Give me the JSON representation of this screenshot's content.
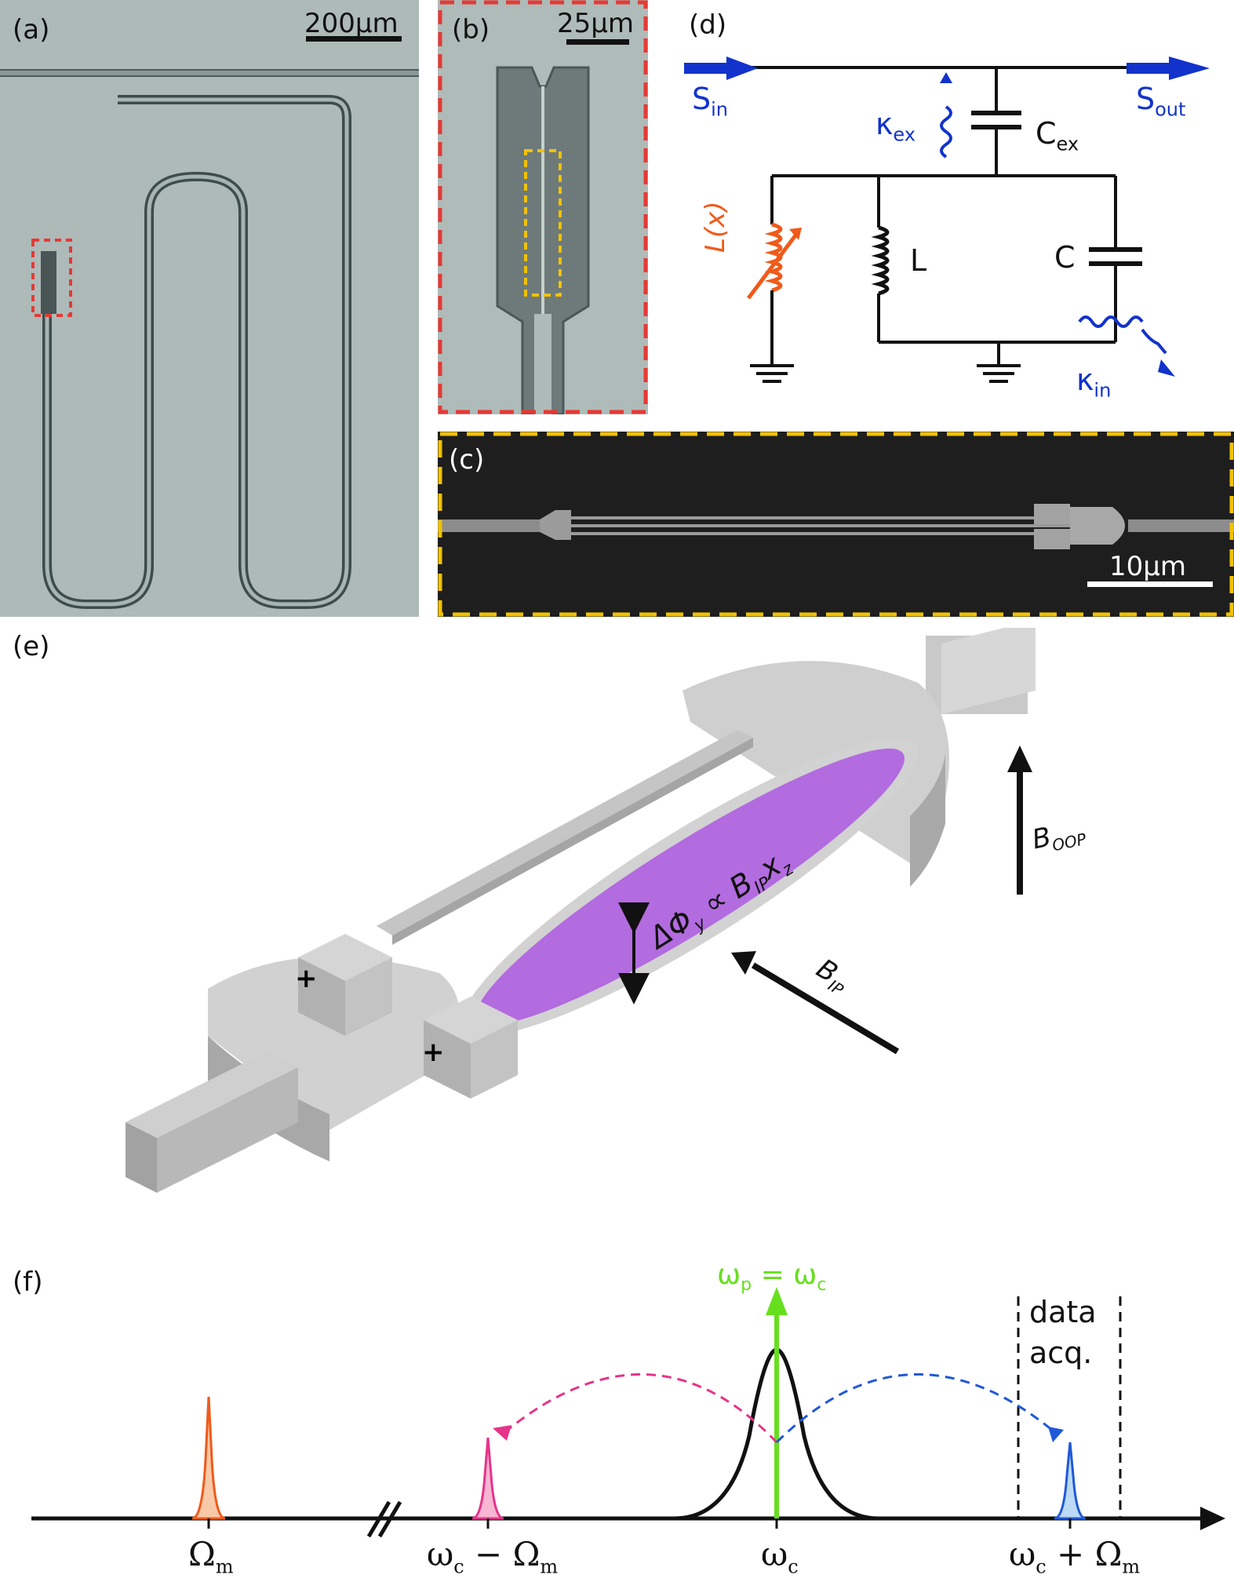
{
  "panels": {
    "a": {
      "label": "(a)",
      "scale": "200µm"
    },
    "b": {
      "label": "(b)",
      "scale": "25µm"
    },
    "c": {
      "label": "(c)",
      "scale": "10µm"
    },
    "d": {
      "label": "(d)",
      "s_in": "S",
      "s_in_sub": "in",
      "s_out": "S",
      "s_out_sub": "out",
      "kappa_ex": "κ",
      "kappa_ex_sub": "ex",
      "c_ex": "C",
      "c_ex_sub": "ex",
      "l_x": "L(x)",
      "l": "L",
      "c": "C",
      "kappa_in": "κ",
      "kappa_in_sub": "in"
    },
    "e": {
      "label": "(e)",
      "phi_text_1": "ΔΦ",
      "phi_sub": "y",
      "phi_text_2": " ∝ B",
      "phi_sub2": "IP",
      "phi_text_3": "x",
      "phi_sub3": "z",
      "b_oop": "B",
      "b_oop_sub": "OOP",
      "b_ip": "B",
      "b_ip_sub": "IP"
    },
    "f": {
      "label": "(f)",
      "probe": "ω",
      "probe_sub": "p",
      "probe_eq": " = ω",
      "probe_sub2": "c",
      "data_line1": "data",
      "data_line2": "acq.",
      "tick_omega_m": "Ω",
      "tick_omega_m_sub": "m",
      "tick_lower": "ω",
      "tick_lower_sub": "c",
      "tick_lower_rest": " − Ω",
      "tick_lower_sub2": "m",
      "tick_center": "ω",
      "tick_center_sub": "c",
      "tick_upper": "ω",
      "tick_upper_sub": "c",
      "tick_upper_rest": " + Ω",
      "tick_upper_sub2": "m"
    }
  },
  "colors": {
    "red_dash": "#e53935",
    "yellow_dash": "#f2c200",
    "blue": "#1133cc",
    "orange": "#f05a1a",
    "green": "#66e01e",
    "magenta": "#e6348a",
    "light_blue": "#4a90e2",
    "purple": "#b36be0"
  }
}
